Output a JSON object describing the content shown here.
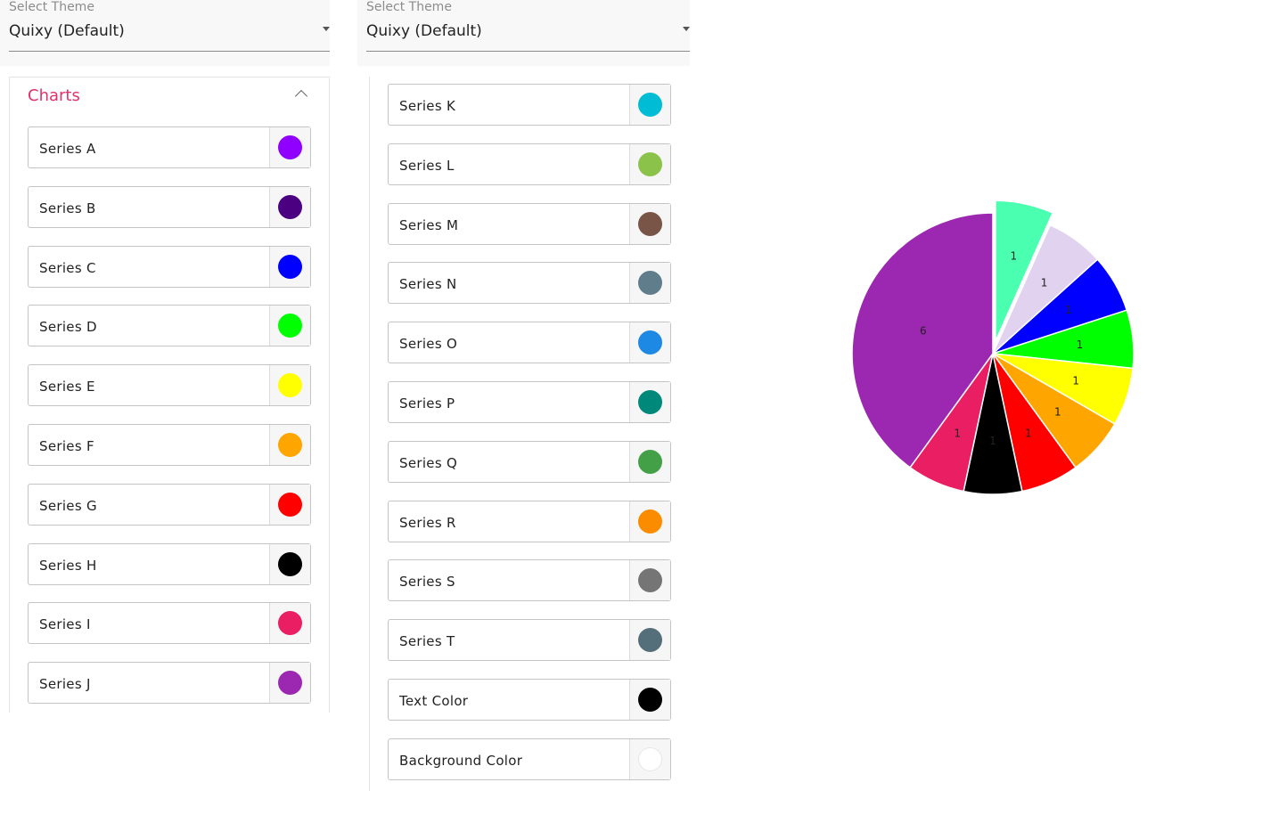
{
  "theme_left": {
    "label": "Select Theme",
    "value": "Quixy (Default)"
  },
  "theme_right": {
    "label": "Select Theme",
    "value": "Quixy (Default)"
  },
  "charts_section": {
    "title": "Charts"
  },
  "series_left": [
    {
      "name": "Series A",
      "color": "#8f00ff"
    },
    {
      "name": "Series B",
      "color": "#4b0082"
    },
    {
      "name": "Series C",
      "color": "#0000ff"
    },
    {
      "name": "Series D",
      "color": "#00ff00"
    },
    {
      "name": "Series E",
      "color": "#ffff00"
    },
    {
      "name": "Series F",
      "color": "#ffa500"
    },
    {
      "name": "Series G",
      "color": "#ff0000"
    },
    {
      "name": "Series H",
      "color": "#000000"
    },
    {
      "name": "Series I",
      "color": "#e91e63"
    },
    {
      "name": "Series J",
      "color": "#9c27b0"
    }
  ],
  "series_right": [
    {
      "name": "Series K",
      "color": "#00bcd4"
    },
    {
      "name": "Series L",
      "color": "#8bc34a"
    },
    {
      "name": "Series M",
      "color": "#795548"
    },
    {
      "name": "Series N",
      "color": "#607d8b"
    },
    {
      "name": "Series O",
      "color": "#1e88e5"
    },
    {
      "name": "Series P",
      "color": "#00897b"
    },
    {
      "name": "Series Q",
      "color": "#43a047"
    },
    {
      "name": "Series R",
      "color": "#fb8c00"
    },
    {
      "name": "Series S",
      "color": "#757575"
    },
    {
      "name": "Series T",
      "color": "#546e7a"
    },
    {
      "name": "Text Color",
      "color": "#000000"
    },
    {
      "name": "Background Color",
      "color": "#ffffff"
    }
  ],
  "chart_data": {
    "type": "pie",
    "title": "",
    "slices": [
      {
        "value": 1,
        "color": "#4affb0",
        "label": "1",
        "exploded": true
      },
      {
        "value": 1,
        "color": "#e1d3f0",
        "label": "1"
      },
      {
        "value": 1,
        "color": "#0000ff",
        "label": "1"
      },
      {
        "value": 1,
        "color": "#00ff00",
        "label": "1"
      },
      {
        "value": 1,
        "color": "#ffff00",
        "label": "1"
      },
      {
        "value": 1,
        "color": "#ffa500",
        "label": "1"
      },
      {
        "value": 1,
        "color": "#ff0000",
        "label": "1"
      },
      {
        "value": 1,
        "color": "#000000",
        "label": "1"
      },
      {
        "value": 1,
        "color": "#e91e63",
        "label": "1"
      },
      {
        "value": 6,
        "color": "#9c27b0",
        "label": "6"
      }
    ]
  }
}
